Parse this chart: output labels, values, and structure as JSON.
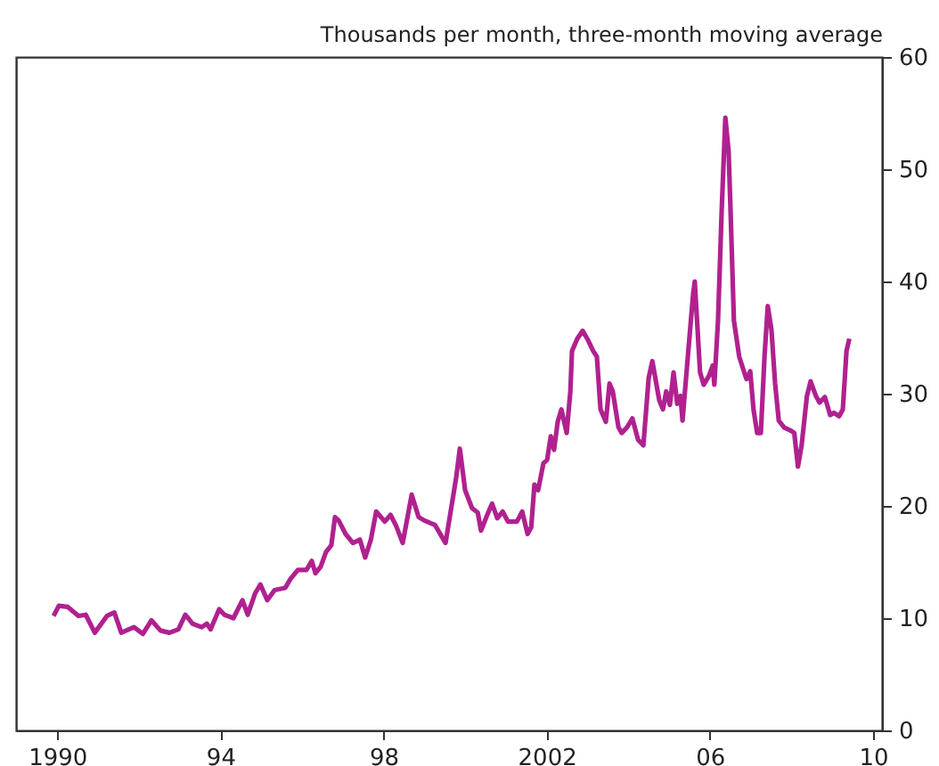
{
  "chart_data": {
    "type": "line",
    "ylabel": "Thousands per month, three-month moving average",
    "x": [
      1989.91,
      1990.04,
      1990.26,
      1990.52,
      1990.7,
      1990.92,
      1991.22,
      1991.4,
      1991.57,
      1991.88,
      1992.1,
      1992.31,
      1992.53,
      1992.75,
      1992.97,
      1993.14,
      1993.32,
      1993.54,
      1993.67,
      1993.76,
      1993.97,
      1994.1,
      1994.32,
      1994.54,
      1994.67,
      1994.85,
      1994.98,
      1995.15,
      1995.33,
      1995.59,
      1995.72,
      1995.9,
      1996.11,
      1996.24,
      1996.33,
      1996.46,
      1996.59,
      1996.72,
      1996.81,
      1996.9,
      1997.07,
      1997.25,
      1997.42,
      1997.55,
      1997.69,
      1997.82,
      1998.03,
      1998.17,
      1998.3,
      1998.47,
      1998.69,
      1998.86,
      1999.0,
      1999.26,
      1999.52,
      1999.78,
      1999.87,
      2000.0,
      2000.17,
      2000.31,
      2000.39,
      2000.52,
      2000.66,
      2000.79,
      2000.92,
      2001.05,
      2001.27,
      2001.4,
      2001.53,
      2001.62,
      2001.7,
      2001.79,
      2001.92,
      2002.01,
      2002.1,
      2002.18,
      2002.27,
      2002.36,
      2002.49,
      2002.58,
      2002.62,
      2002.75,
      2002.88,
      2003.01,
      2003.14,
      2003.23,
      2003.32,
      2003.45,
      2003.54,
      2003.62,
      2003.76,
      2003.84,
      2003.97,
      2004.1,
      2004.24,
      2004.37,
      2004.5,
      2004.59,
      2004.76,
      2004.85,
      2004.93,
      2005.02,
      2005.11,
      2005.2,
      2005.28,
      2005.33,
      2005.46,
      2005.59,
      2005.63,
      2005.76,
      2005.85,
      2005.98,
      2006.07,
      2006.11,
      2006.2,
      2006.29,
      2006.38,
      2006.46,
      2006.51,
      2006.59,
      2006.72,
      2006.86,
      2006.9,
      2006.99,
      2007.07,
      2007.16,
      2007.25,
      2007.34,
      2007.42,
      2007.51,
      2007.6,
      2007.69,
      2007.82,
      2007.99,
      2008.07,
      2008.16,
      2008.25,
      2008.38,
      2008.47,
      2008.6,
      2008.69,
      2008.82,
      2008.95,
      2009.04,
      2009.17,
      2009.26,
      2009.35,
      2009.42
    ],
    "series": [
      {
        "color": "#b0218f",
        "values": [
          10.2,
          11.1,
          11,
          10.2,
          10.3,
          8.7,
          10.2,
          10.5,
          8.7,
          9.2,
          8.6,
          9.8,
          8.9,
          8.7,
          9,
          10.3,
          9.5,
          9.2,
          9.5,
          9,
          10.8,
          10.3,
          10,
          11.6,
          10.3,
          12.2,
          13,
          11.6,
          12.5,
          12.7,
          13.5,
          14.3,
          14.3,
          15.1,
          14,
          14.6,
          15.9,
          16.5,
          19,
          18.7,
          17.5,
          16.7,
          17,
          15.4,
          17,
          19.5,
          18.6,
          19.2,
          18.3,
          16.7,
          21,
          19,
          18.7,
          18.3,
          16.7,
          22.5,
          25.1,
          21.4,
          19.8,
          19.4,
          17.8,
          19,
          20.2,
          18.9,
          19.5,
          18.6,
          18.6,
          19.5,
          17.5,
          18.1,
          21.9,
          21.4,
          23.8,
          24.1,
          26.2,
          25,
          27.5,
          28.6,
          26.5,
          30.2,
          33.8,
          34.9,
          35.6,
          34.8,
          33.8,
          33.3,
          28.6,
          27.5,
          30.9,
          30.2,
          27,
          26.5,
          27,
          27.8,
          25.9,
          25.4,
          31.4,
          32.9,
          29.4,
          28.6,
          30.2,
          29,
          31.9,
          29.1,
          29.8,
          27.6,
          33.3,
          38.9,
          40,
          31.9,
          30.8,
          31.6,
          32.5,
          30.8,
          36.5,
          46.3,
          54.6,
          51.6,
          46,
          36.5,
          33.3,
          31.7,
          31.3,
          32,
          28.6,
          26.5,
          26.5,
          33.3,
          37.8,
          35.7,
          30.9,
          27.6,
          27,
          26.7,
          26.5,
          23.5,
          25.4,
          29.8,
          31.1,
          29.8,
          29.2,
          29.7,
          28.1,
          28.3,
          28,
          28.6,
          33.8,
          34.9
        ]
      }
    ],
    "xlim": [
      1988.99,
      2010.22
    ],
    "xticks": [
      1990,
      {
        "value": 1994,
        "label": "94"
      },
      {
        "value": 1998,
        "label": "98"
      },
      2002,
      {
        "value": 2006,
        "label": "06"
      },
      {
        "value": 2010,
        "label": "10"
      }
    ],
    "ylim": [
      0,
      60
    ],
    "yticks": [
      0,
      10,
      20,
      30,
      40,
      50,
      60
    ],
    "grid": false,
    "legend": false,
    "marker": "none",
    "line_style": "solid"
  }
}
